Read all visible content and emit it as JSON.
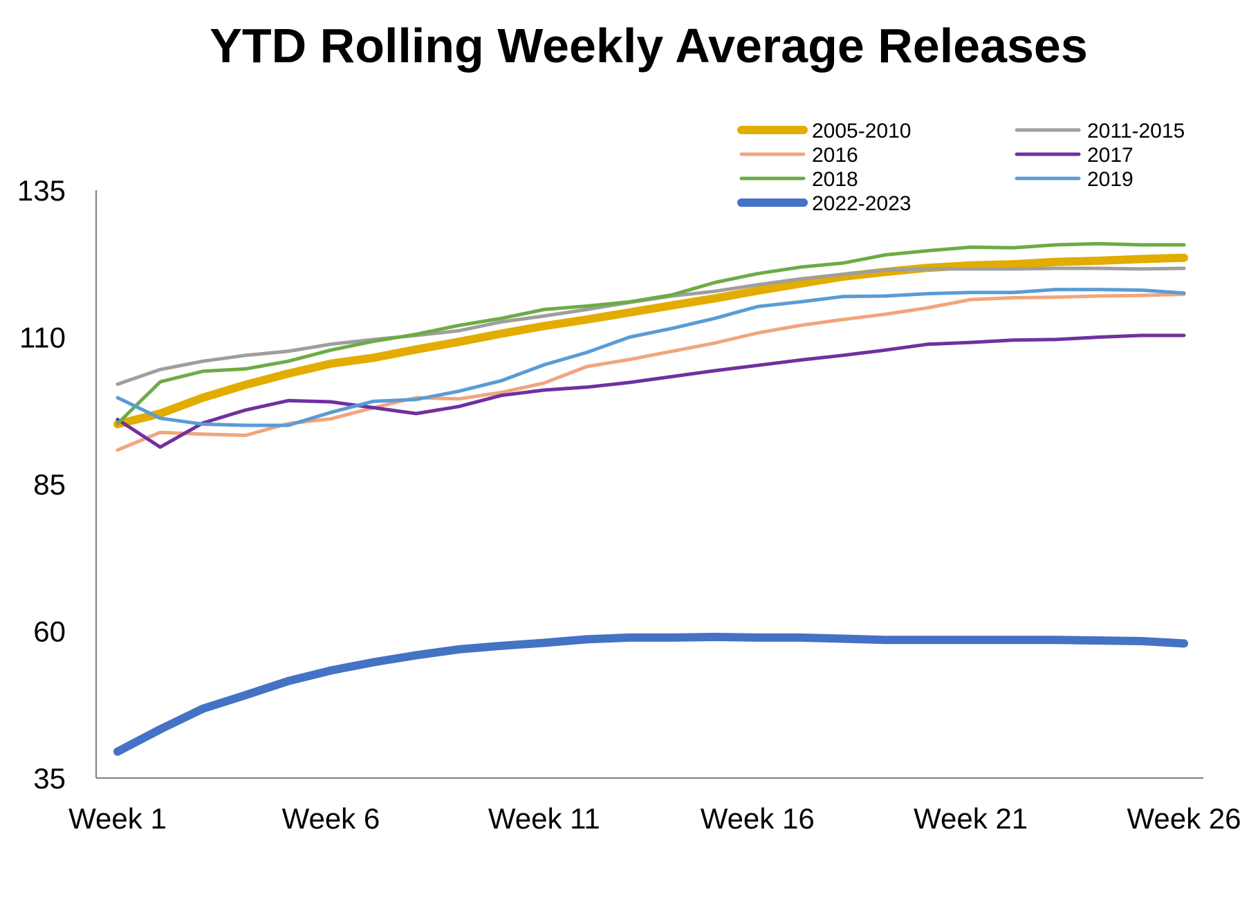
{
  "chart_data": {
    "type": "line",
    "title": "YTD Rolling Weekly Average Releases",
    "xlabel": "",
    "ylabel": "",
    "x_categories": [
      "Week 1",
      "Week 2",
      "Week 3",
      "Week 4",
      "Week 5",
      "Week 6",
      "Week 7",
      "Week 8",
      "Week 9",
      "Week 10",
      "Week 11",
      "Week 12",
      "Week 13",
      "Week 14",
      "Week 15",
      "Week 16",
      "Week 17",
      "Week 18",
      "Week 19",
      "Week 20",
      "Week 21",
      "Week 22",
      "Week 23",
      "Week 24",
      "Week 25",
      "Week 26"
    ],
    "x_tick_labels": [
      "Week 1",
      "Week 6",
      "Week 11",
      "Week 16",
      "Week 21",
      "Week 26"
    ],
    "y_tick_labels": [
      "35",
      "60",
      "85",
      "110",
      "135"
    ],
    "ylim": [
      35,
      135
    ],
    "grid": false,
    "legend_position": "top-right",
    "series": [
      {
        "name": "2005-2010",
        "color": "#E2AC00",
        "weight": "thick",
        "values": [
          95.2,
          97.0,
          99.7,
          101.9,
          103.8,
          105.5,
          106.5,
          107.9,
          109.2,
          110.6,
          111.9,
          113.0,
          114.2,
          115.4,
          116.6,
          117.9,
          119.1,
          120.3,
          121.1,
          121.8,
          122.2,
          122.4,
          122.8,
          123.0,
          123.3,
          123.5
        ]
      },
      {
        "name": "2011-2015",
        "color": "#9E9E9E",
        "weight": "normal",
        "values": [
          102.0,
          104.5,
          105.9,
          106.9,
          107.6,
          108.8,
          109.6,
          110.3,
          111.1,
          112.6,
          113.6,
          114.7,
          115.9,
          117.0,
          117.8,
          118.9,
          119.9,
          120.7,
          121.4,
          121.6,
          121.6,
          121.6,
          121.7,
          121.7,
          121.6,
          121.7
        ]
      },
      {
        "name": "2016",
        "color": "#F1A57C",
        "weight": "normal",
        "values": [
          90.8,
          93.8,
          93.5,
          93.3,
          95.3,
          96.1,
          98.0,
          99.7,
          99.5,
          100.6,
          102.2,
          105.0,
          106.2,
          107.6,
          109.0,
          110.7,
          112.0,
          113.0,
          113.9,
          115.0,
          116.4,
          116.7,
          116.8,
          117.0,
          117.1,
          117.3
        ]
      },
      {
        "name": "2017",
        "color": "#7030A0",
        "weight": "normal",
        "values": [
          96.0,
          91.3,
          95.4,
          97.6,
          99.2,
          99.0,
          98.0,
          97.0,
          98.2,
          100.1,
          101.0,
          101.5,
          102.3,
          103.3,
          104.3,
          105.2,
          106.1,
          106.9,
          107.8,
          108.8,
          109.1,
          109.5,
          109.6,
          110.0,
          110.3,
          110.3
        ]
      },
      {
        "name": "2018",
        "color": "#6CAC44",
        "weight": "normal",
        "values": [
          95.3,
          102.4,
          104.2,
          104.6,
          105.9,
          107.8,
          109.3,
          110.5,
          112.0,
          113.2,
          114.7,
          115.3,
          116.0,
          117.2,
          119.3,
          120.8,
          121.9,
          122.6,
          124.0,
          124.7,
          125.3,
          125.2,
          125.7,
          125.9,
          125.7,
          125.7
        ]
      },
      {
        "name": "2019",
        "color": "#5B9BD5",
        "weight": "normal",
        "values": [
          99.7,
          96.2,
          95.2,
          95.0,
          95.0,
          97.2,
          99.1,
          99.4,
          100.8,
          102.6,
          105.3,
          107.4,
          110.0,
          111.5,
          113.2,
          115.2,
          116.0,
          116.9,
          117.0,
          117.4,
          117.6,
          117.6,
          118.1,
          118.1,
          118.0,
          117.5
        ]
      },
      {
        "name": "2022-2023",
        "color": "#4472C4",
        "weight": "thick",
        "values": [
          39.5,
          43.3,
          46.8,
          49.1,
          51.5,
          53.3,
          54.7,
          55.9,
          56.9,
          57.5,
          58.0,
          58.6,
          58.9,
          58.9,
          59.0,
          58.9,
          58.9,
          58.7,
          58.5,
          58.5,
          58.5,
          58.5,
          58.5,
          58.4,
          58.3,
          57.9
        ]
      }
    ]
  }
}
